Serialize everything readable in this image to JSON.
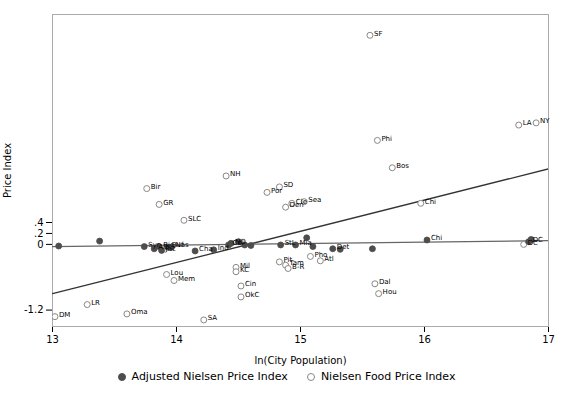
{
  "chart_data": {
    "type": "scatter",
    "xlabel": "ln(City Population)",
    "ylabel": "Price Index",
    "xlim": [
      13,
      17
    ],
    "ylim": [
      -1.5,
      4.2
    ],
    "xticks": [
      13,
      14,
      15,
      16,
      17
    ],
    "yticks": [
      -1.2,
      0,
      {
        "value": 0.2,
        "label": ".2"
      },
      {
        "value": 0.4,
        "label": ".4"
      }
    ],
    "grid": false,
    "legend": "bottom",
    "series": [
      {
        "name": "Adjusted Nielsen Price Index",
        "type": "scatter",
        "color": "#4d4d4d",
        "marker": "circle",
        "x": [
          13.05,
          13.38,
          13.74,
          13.82,
          13.86,
          13.93,
          13.96,
          13.88,
          14.15,
          14.3,
          14.42,
          14.44,
          14.5,
          14.55,
          14.6,
          14.84,
          14.96,
          15.05,
          15.1,
          15.26,
          15.32,
          15.58,
          16.02,
          16.84,
          16.86
        ],
        "values": [
          -0.03,
          0.06,
          -0.04,
          -0.08,
          -0.04,
          -0.05,
          -0.05,
          -0.11,
          -0.12,
          -0.1,
          -0.01,
          0.02,
          0.05,
          -0.01,
          -0.02,
          -0.01,
          -0.01,
          0.12,
          -0.04,
          -0.08,
          -0.09,
          -0.08,
          0.08,
          0.05,
          0.09
        ],
        "labels": [
          null,
          null,
          "Syr",
          "Alb",
          "Ric",
          "Buf",
          "Nas",
          "Jac",
          "Cha",
          "Ind",
          "Col",
          "NO",
          null,
          null,
          null,
          "StL",
          "Mia",
          null,
          null,
          "Det",
          null,
          null,
          "Chi",
          "DC",
          null
        ]
      },
      {
        "name": "Nielsen Food Price Index",
        "type": "scatter",
        "color": "#888888",
        "marker": "open",
        "x": [
          13.02,
          13.28,
          13.6,
          13.76,
          13.86,
          14.06,
          13.92,
          13.98,
          14.22,
          14.4,
          14.48,
          14.48,
          14.52,
          14.52,
          14.73,
          14.83,
          14.83,
          14.88,
          14.9,
          15.08,
          14.93,
          14.88,
          15.03,
          15.16,
          15.6,
          15.63,
          15.56,
          15.62,
          15.74,
          15.97,
          16.76,
          16.9,
          16.8
        ],
        "values": [
          -1.32,
          -1.1,
          -1.27,
          1.02,
          0.73,
          0.44,
          -0.55,
          -0.66,
          -1.38,
          1.25,
          -0.42,
          -0.5,
          -0.76,
          -0.96,
          0.95,
          1.05,
          -0.32,
          -0.38,
          -0.44,
          -0.22,
          0.75,
          0.68,
          0.78,
          -0.3,
          -0.72,
          -0.9,
          3.82,
          1.9,
          1.4,
          0.75,
          2.18,
          2.22,
          0.0
        ],
        "labels": [
          "DM",
          "LR",
          "Oma",
          "Bir",
          "GR",
          "SLC",
          "Lou",
          "Mem",
          "SA",
          "NH",
          "Mil",
          "KC",
          "Cin",
          "OkC",
          "Por",
          "SD",
          "Pit",
          "Tam",
          "B-R",
          "Pho",
          "Cle",
          "Den",
          "Sea",
          "Atl",
          "Dal",
          "Hou",
          "SF",
          "Phi",
          "Bos",
          "Chi",
          "LA",
          "NY",
          "DC"
        ]
      },
      {
        "type": "line",
        "color": "#666666",
        "x": [
          13.0,
          17.0
        ],
        "values": [
          -0.04,
          0.07
        ]
      },
      {
        "type": "line",
        "color": "#333333",
        "x": [
          13.0,
          17.0
        ],
        "values": [
          -0.9,
          1.38
        ]
      }
    ]
  }
}
